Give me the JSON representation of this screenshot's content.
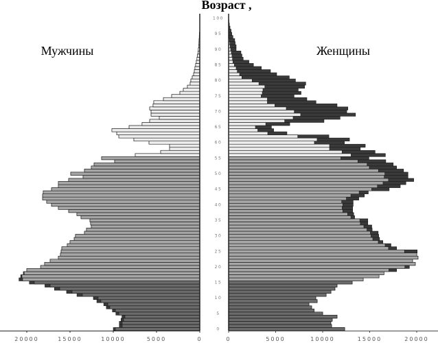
{
  "chart_data": {
    "type": "bar",
    "orientation": "horizontal-population-pyramid",
    "title": "Возраст ,",
    "left_label": "Мужчины",
    "right_label": "Женщины",
    "age_ticks": [
      "0",
      "5",
      "10",
      "15",
      "20",
      "25",
      "30",
      "35",
      "40",
      "45",
      "50",
      "55",
      "60",
      "65",
      "70",
      "75",
      "80",
      "85",
      "90",
      "95",
      "100"
    ],
    "male_ticks": [
      "20000",
      "15000",
      "10000",
      "5000",
      "0"
    ],
    "female_ticks": [
      "0",
      "5000",
      "10000",
      "15000",
      "20000"
    ],
    "xlim": [
      0,
      20000
    ],
    "ages": [
      0,
      100
    ],
    "grid": false,
    "colors": {
      "age_0_15": "#6b6b6b",
      "age_16_55": "#a6a6a6",
      "age_56_plus": "#ececec",
      "back_series": "#3a3a3a",
      "stroke": "#1a1a1a"
    },
    "male": {
      "front": [
        9760,
        8970,
        8970,
        8810,
        8650,
        9360,
        9760,
        10400,
        10630,
        11430,
        11750,
        13570,
        14760,
        16190,
        17300,
        19130,
        20480,
        20560,
        20300,
        20000,
        18400,
        17940,
        17300,
        16350,
        16110,
        16030,
        15950,
        15320,
        15000,
        14520,
        14370,
        13330,
        13100,
        12540,
        12620,
        12700,
        13730,
        14210,
        15160,
        16350,
        17140,
        17700,
        18170,
        18170,
        18100,
        17140,
        16350,
        16350,
        15160,
        13490,
        14920,
        13330,
        12540,
        12220,
        9840,
        11350,
        7460,
        4520,
        3490,
        3490,
        5870,
        7620,
        9360,
        9600,
        10160,
        8170,
        6670,
        5790,
        4680,
        5630,
        5630,
        5790,
        5400,
        5320,
        4200,
        3250,
        2300,
        1900,
        1430,
        1110,
        1030,
        870,
        710,
        630,
        560,
        480,
        400,
        330,
        270,
        200,
        170,
        130,
        100,
        80,
        60,
        40,
        0,
        0,
        0,
        0,
        0
      ],
      "back": [
        10000,
        9300,
        9300,
        9100,
        9000,
        9700,
        10100,
        10800,
        11100,
        11900,
        12300,
        14200,
        15400,
        16800,
        17900,
        19700,
        20900,
        20700,
        20400,
        20000,
        18400,
        17940,
        17300,
        16350,
        16110,
        16030,
        15950,
        15320,
        15000,
        14520,
        14370,
        13330,
        13100,
        12540,
        12620,
        12700,
        13730,
        14210,
        15160,
        16350,
        17140,
        17700,
        18170,
        18170,
        18100,
        17140,
        16350,
        16350,
        15160,
        13490,
        14920,
        13330,
        12540,
        12220,
        9840,
        11350,
        7460,
        4520,
        3490,
        3490,
        5870,
        7620,
        9360,
        9600,
        10160,
        8170,
        6670,
        5790,
        4680,
        5630,
        5630,
        5790,
        5400,
        5320,
        4200,
        3250,
        2300,
        1900,
        1430,
        1110,
        1030,
        870,
        710,
        630,
        560,
        480,
        400,
        330,
        270,
        200,
        170,
        130,
        100,
        80,
        60,
        40,
        0,
        0,
        0,
        0,
        0
      ]
    },
    "female": {
      "front": [
        12340,
        10950,
        10870,
        11020,
        11530,
        10000,
        9100,
        8830,
        8540,
        9420,
        9270,
        10370,
        10880,
        11310,
        11530,
        13140,
        14310,
        15990,
        16520,
        17040,
        18740,
        19850,
        19560,
        20140,
        20000,
        18700,
        17000,
        16640,
        15910,
        15330,
        15140,
        15070,
        14710,
        14380,
        14000,
        13950,
        13000,
        12650,
        12140,
        12070,
        12140,
        12020,
        12520,
        13000,
        13880,
        15210,
        15820,
        16420,
        17000,
        16540,
        16610,
        15930,
        14960,
        14720,
        13750,
        11930,
        13020,
        12060,
        10730,
        10730,
        9120,
        9410,
        7350,
        4160,
        3100,
        2850,
        3950,
        5960,
        6860,
        7660,
        6980,
        6130,
        4920,
        4120,
        4120,
        3460,
        3580,
        3650,
        3850,
        3220,
        2500,
        1410,
        1170,
        920,
        800,
        610,
        460,
        410,
        360,
        290,
        220,
        170,
        120,
        90,
        60,
        40,
        20,
        0,
        0,
        0,
        0
      ],
      "back": [
        12340,
        10950,
        10870,
        11020,
        11530,
        10000,
        9100,
        8830,
        8540,
        9420,
        9270,
        10370,
        10880,
        11310,
        11530,
        13140,
        14310,
        15990,
        16520,
        17860,
        19220,
        19850,
        19560,
        20140,
        20000,
        20050,
        17860,
        17260,
        16400,
        16050,
        15960,
        15900,
        15260,
        15220,
        14800,
        14800,
        13400,
        13300,
        13190,
        13190,
        13240,
        13240,
        13840,
        14430,
        14850,
        17070,
        18250,
        18850,
        19680,
        19070,
        19070,
        18600,
        17860,
        17500,
        16710,
        14920,
        16670,
        15570,
        14000,
        14530,
        12310,
        12850,
        10660,
        6200,
        4790,
        4550,
        6500,
        10140,
        11850,
        13490,
        12560,
        12680,
        11530,
        9290,
        8320,
        6960,
        7700,
        7400,
        8080,
        8200,
        7110,
        6450,
        5110,
        4450,
        3480,
        2640,
        2160,
        1550,
        1420,
        1310,
        800,
        800,
        700,
        650,
        460,
        340,
        260,
        150,
        80,
        40,
        0
      ]
    }
  }
}
